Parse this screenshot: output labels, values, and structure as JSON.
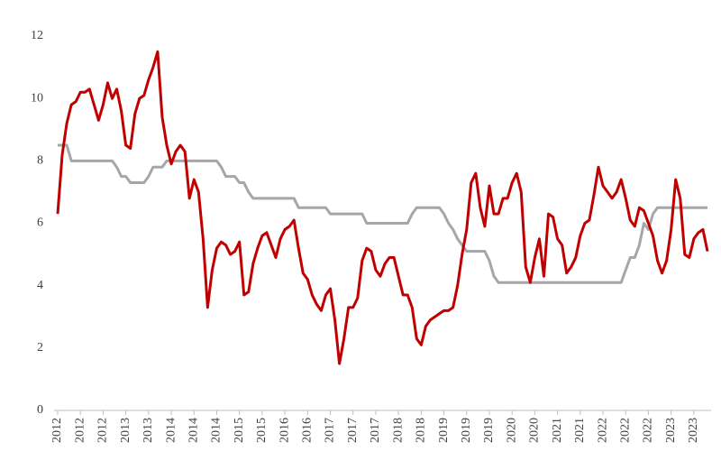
{
  "chart_data": {
    "type": "line",
    "categories": [
      "2012",
      null,
      null,
      null,
      null,
      "2012",
      null,
      null,
      null,
      null,
      "2012",
      null,
      null,
      null,
      null,
      "2013",
      null,
      null,
      null,
      null,
      "2013",
      null,
      null,
      null,
      null,
      "2014",
      null,
      null,
      null,
      null,
      "2014",
      null,
      null,
      null,
      null,
      "2014",
      null,
      null,
      null,
      null,
      "2015",
      null,
      null,
      null,
      null,
      "2015",
      null,
      null,
      null,
      null,
      "2016",
      null,
      null,
      null,
      null,
      "2016",
      null,
      null,
      null,
      null,
      "2017",
      null,
      null,
      null,
      null,
      "2017",
      null,
      null,
      null,
      null,
      "2017",
      null,
      null,
      null,
      null,
      "2018",
      null,
      null,
      null,
      null,
      "2018",
      null,
      null,
      null,
      null,
      "2019",
      null,
      null,
      null,
      null,
      "2019",
      null,
      null,
      null,
      null,
      "2019",
      null,
      null,
      null,
      null,
      "2020",
      null,
      null,
      null,
      null,
      "2020",
      null,
      null,
      null,
      null,
      "2021",
      null,
      null,
      null,
      null,
      "2021",
      null,
      null,
      null,
      null,
      "2022",
      null,
      null,
      null,
      null,
      "2022",
      null,
      null,
      null,
      null,
      "2022",
      null,
      null,
      null,
      null,
      "2023",
      null,
      null,
      null,
      null,
      "2023",
      null,
      null,
      null
    ],
    "series": [
      {
        "color": "#c00000",
        "values": [
          6.3,
          8.2,
          9.2,
          9.8,
          9.9,
          10.2,
          10.2,
          10.3,
          9.8,
          9.3,
          9.8,
          10.5,
          10.0,
          10.3,
          9.6,
          8.5,
          8.4,
          9.5,
          10.0,
          10.1,
          10.6,
          11.0,
          11.5,
          9.4,
          8.5,
          7.9,
          8.3,
          8.5,
          8.3,
          6.8,
          7.4,
          7.0,
          5.5,
          3.3,
          4.5,
          5.2,
          5.4,
          5.3,
          5.0,
          5.1,
          5.4,
          3.7,
          3.8,
          4.7,
          5.2,
          5.6,
          5.7,
          5.3,
          4.9,
          5.5,
          5.8,
          5.9,
          6.1,
          5.2,
          4.4,
          4.2,
          3.7,
          3.4,
          3.2,
          3.7,
          3.9,
          2.9,
          1.5,
          2.3,
          3.3,
          3.3,
          3.6,
          4.8,
          5.2,
          5.1,
          4.5,
          4.3,
          4.7,
          4.9,
          4.9,
          4.3,
          3.7,
          3.7,
          3.3,
          2.3,
          2.1,
          2.7,
          2.9,
          3.0,
          3.1,
          3.2,
          3.2,
          3.3,
          4.0,
          5.0,
          5.8,
          7.3,
          7.6,
          6.5,
          5.9,
          7.2,
          6.3,
          6.3,
          6.8,
          6.8,
          7.3,
          7.6,
          7.0,
          4.6,
          4.1,
          4.9,
          5.5,
          4.3,
          6.3,
          6.2,
          5.5,
          5.3,
          4.4,
          4.6,
          4.9,
          5.6,
          6.0,
          6.1,
          6.9,
          7.8,
          7.2,
          7.0,
          6.8,
          7.0,
          7.4,
          6.8,
          6.1,
          5.9,
          6.5,
          6.4,
          6.0,
          5.6,
          4.8,
          4.4,
          4.8,
          5.8,
          7.4,
          6.8,
          5.0,
          4.9,
          5.5,
          5.7,
          5.8,
          5.1
        ]
      },
      {
        "color": "#a6a6a6",
        "values": [
          8.5,
          8.5,
          8.5,
          8.0,
          8.0,
          8.0,
          8.0,
          8.0,
          8.0,
          8.0,
          8.0,
          8.0,
          8.0,
          7.8,
          7.5,
          7.5,
          7.3,
          7.3,
          7.3,
          7.3,
          7.5,
          7.8,
          7.8,
          7.8,
          8.0,
          8.0,
          8.0,
          8.0,
          8.0,
          8.0,
          8.0,
          8.0,
          8.0,
          8.0,
          8.0,
          8.0,
          7.8,
          7.5,
          7.5,
          7.5,
          7.3,
          7.3,
          7.0,
          6.8,
          6.8,
          6.8,
          6.8,
          6.8,
          6.8,
          6.8,
          6.8,
          6.8,
          6.8,
          6.5,
          6.5,
          6.5,
          6.5,
          6.5,
          6.5,
          6.5,
          6.3,
          6.3,
          6.3,
          6.3,
          6.3,
          6.3,
          6.3,
          6.3,
          6.0,
          6.0,
          6.0,
          6.0,
          6.0,
          6.0,
          6.0,
          6.0,
          6.0,
          6.0,
          6.3,
          6.5,
          6.5,
          6.5,
          6.5,
          6.5,
          6.5,
          6.3,
          6.0,
          5.8,
          5.5,
          5.3,
          5.1,
          5.1,
          5.1,
          5.1,
          5.1,
          4.8,
          4.3,
          4.1,
          4.1,
          4.1,
          4.1,
          4.1,
          4.1,
          4.1,
          4.1,
          4.1,
          4.1,
          4.1,
          4.1,
          4.1,
          4.1,
          4.1,
          4.1,
          4.1,
          4.1,
          4.1,
          4.1,
          4.1,
          4.1,
          4.1,
          4.1,
          4.1,
          4.1,
          4.1,
          4.1,
          4.5,
          4.9,
          4.9,
          5.3,
          6.0,
          5.8,
          6.3,
          6.5,
          6.5,
          6.5,
          6.5,
          6.5,
          6.5,
          6.5,
          6.5,
          6.5,
          6.5,
          6.5,
          6.5
        ]
      }
    ],
    "ylim": [
      0,
      12
    ],
    "yticks": [
      0,
      2,
      4,
      6,
      8,
      10,
      12
    ],
    "grid": false
  }
}
